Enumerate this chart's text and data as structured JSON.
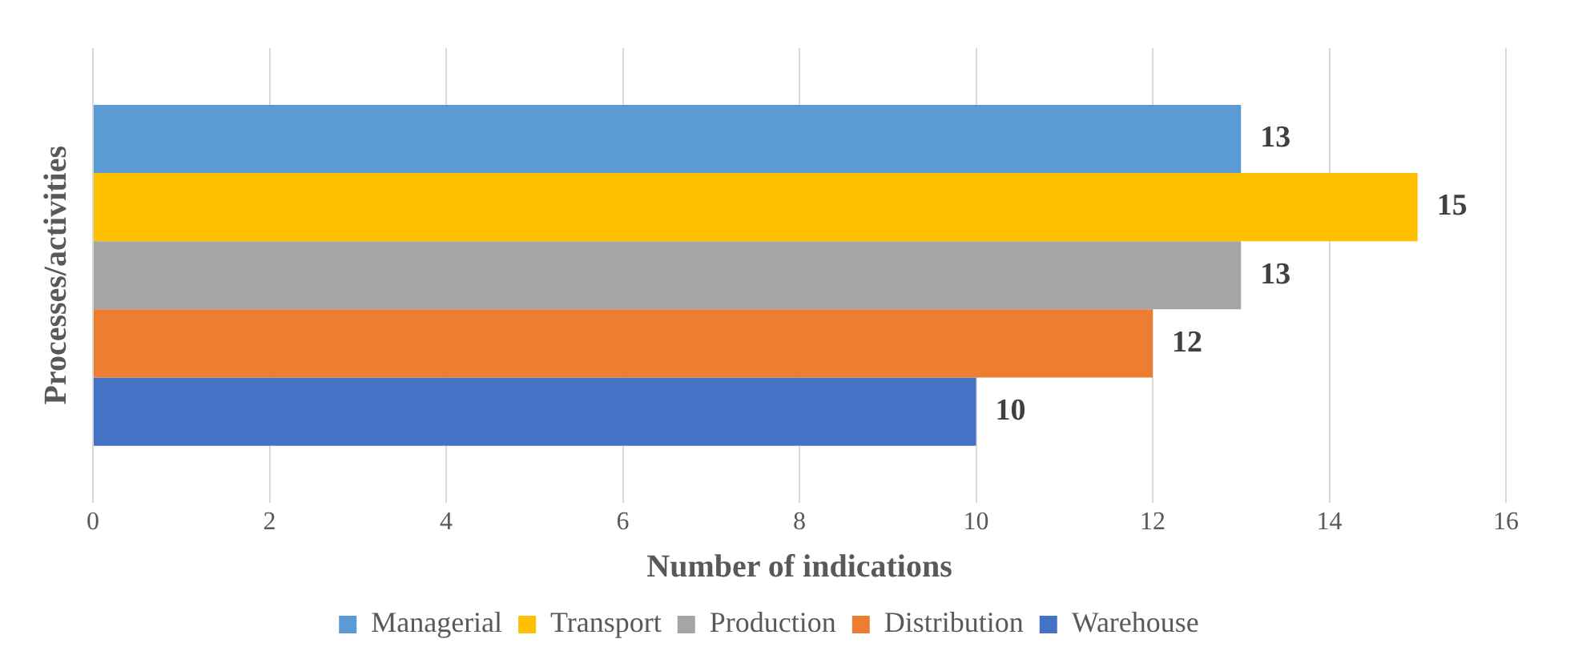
{
  "chart_data": {
    "type": "bar",
    "orientation": "horizontal",
    "xlabel": "Number of indications",
    "ylabel": "Processes/activities",
    "categories": [
      null
    ],
    "series": [
      {
        "name": "Managerial",
        "color": "#5b9bd5",
        "values": [
          13
        ]
      },
      {
        "name": "Transport",
        "color": "#ffc000",
        "values": [
          15
        ]
      },
      {
        "name": "Production",
        "color": "#a5a5a5",
        "values": [
          13
        ]
      },
      {
        "name": "Distribution",
        "color": "#ed7d31",
        "values": [
          12
        ]
      },
      {
        "name": "Warehouse",
        "color": "#4472c4",
        "values": [
          10
        ]
      }
    ],
    "xlim": [
      0,
      16
    ],
    "xticks": [
      0,
      2,
      4,
      6,
      8,
      10,
      12,
      14,
      16
    ],
    "grid": "x",
    "legend": "bottom",
    "data_labels": true
  }
}
